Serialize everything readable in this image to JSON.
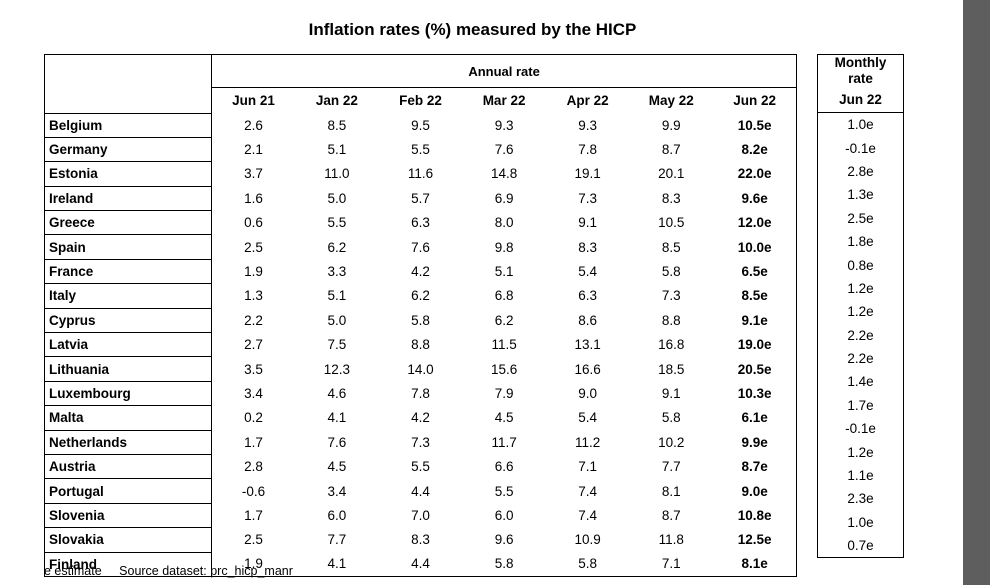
{
  "title": "Inflation rates (%) measured by the HICP",
  "annual_header": "Annual rate",
  "monthly_header": [
    "Monthly",
    "rate"
  ],
  "columns": [
    "Jun 21",
    "Jan 22",
    "Feb 22",
    "Mar 22",
    "Apr 22",
    "May 22",
    "Jun 22"
  ],
  "monthly_column": "Jun 22",
  "rows": [
    {
      "country": "Belgium",
      "values": [
        "2.6",
        "8.5",
        "9.5",
        "9.3",
        "9.3",
        "9.9",
        "10.5e"
      ],
      "monthly": "1.0e"
    },
    {
      "country": "Germany",
      "values": [
        "2.1",
        "5.1",
        "5.5",
        "7.6",
        "7.8",
        "8.7",
        "8.2e"
      ],
      "monthly": "-0.1e"
    },
    {
      "country": "Estonia",
      "values": [
        "3.7",
        "11.0",
        "11.6",
        "14.8",
        "19.1",
        "20.1",
        "22.0e"
      ],
      "monthly": "2.8e"
    },
    {
      "country": "Ireland",
      "values": [
        "1.6",
        "5.0",
        "5.7",
        "6.9",
        "7.3",
        "8.3",
        "9.6e"
      ],
      "monthly": "1.3e"
    },
    {
      "country": "Greece",
      "values": [
        "0.6",
        "5.5",
        "6.3",
        "8.0",
        "9.1",
        "10.5",
        "12.0e"
      ],
      "monthly": "2.5e"
    },
    {
      "country": "Spain",
      "values": [
        "2.5",
        "6.2",
        "7.6",
        "9.8",
        "8.3",
        "8.5",
        "10.0e"
      ],
      "monthly": "1.8e"
    },
    {
      "country": "France",
      "values": [
        "1.9",
        "3.3",
        "4.2",
        "5.1",
        "5.4",
        "5.8",
        "6.5e"
      ],
      "monthly": "0.8e"
    },
    {
      "country": "Italy",
      "values": [
        "1.3",
        "5.1",
        "6.2",
        "6.8",
        "6.3",
        "7.3",
        "8.5e"
      ],
      "monthly": "1.2e"
    },
    {
      "country": "Cyprus",
      "values": [
        "2.2",
        "5.0",
        "5.8",
        "6.2",
        "8.6",
        "8.8",
        "9.1e"
      ],
      "monthly": "1.2e"
    },
    {
      "country": "Latvia",
      "values": [
        "2.7",
        "7.5",
        "8.8",
        "11.5",
        "13.1",
        "16.8",
        "19.0e"
      ],
      "monthly": "2.2e"
    },
    {
      "country": "Lithuania",
      "values": [
        "3.5",
        "12.3",
        "14.0",
        "15.6",
        "16.6",
        "18.5",
        "20.5e"
      ],
      "monthly": "2.2e"
    },
    {
      "country": "Luxembourg",
      "values": [
        "3.4",
        "4.6",
        "7.8",
        "7.9",
        "9.0",
        "9.1",
        "10.3e"
      ],
      "monthly": "1.4e"
    },
    {
      "country": "Malta",
      "values": [
        "0.2",
        "4.1",
        "4.2",
        "4.5",
        "5.4",
        "5.8",
        "6.1e"
      ],
      "monthly": "1.7e"
    },
    {
      "country": "Netherlands",
      "values": [
        "1.7",
        "7.6",
        "7.3",
        "11.7",
        "11.2",
        "10.2",
        "9.9e"
      ],
      "monthly": "-0.1e"
    },
    {
      "country": "Austria",
      "values": [
        "2.8",
        "4.5",
        "5.5",
        "6.6",
        "7.1",
        "7.7",
        "8.7e"
      ],
      "monthly": "1.2e"
    },
    {
      "country": "Portugal",
      "values": [
        "-0.6",
        "3.4",
        "4.4",
        "5.5",
        "7.4",
        "8.1",
        "9.0e"
      ],
      "monthly": "1.1e"
    },
    {
      "country": "Slovenia",
      "values": [
        "1.7",
        "6.0",
        "7.0",
        "6.0",
        "7.4",
        "8.7",
        "10.8e"
      ],
      "monthly": "2.3e"
    },
    {
      "country": "Slovakia",
      "values": [
        "2.5",
        "7.7",
        "8.3",
        "9.6",
        "10.9",
        "11.8",
        "12.5e"
      ],
      "monthly": "1.0e"
    },
    {
      "country": "Finland",
      "values": [
        "1.9",
        "4.1",
        "4.4",
        "5.8",
        "5.8",
        "7.1",
        "8.1e"
      ],
      "monthly": "0.7e"
    }
  ],
  "footer": {
    "estimate_note": "e estimate",
    "source_label": "Source dataset:",
    "source_link": "prc_hicp_manr"
  }
}
